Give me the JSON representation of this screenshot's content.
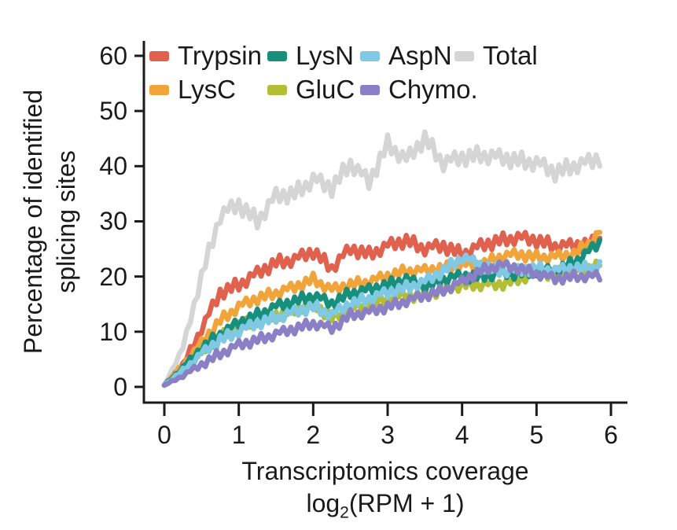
{
  "figure": {
    "ylabel_line1": "Percentage of identified",
    "ylabel_line2": "splicing sites",
    "xlabel_line1": "Transcriptomics coverage",
    "xlabel_log_prefix": "log",
    "xlabel_log_sub": "2",
    "xlabel_log_suffix": "(RPM + 1)"
  },
  "chart_data": {
    "type": "line",
    "title": "",
    "xlabel": "Transcriptomics coverage log2(RPM + 1)",
    "ylabel": "Percentage of identified splicing sites",
    "xlim": [
      -0.28,
      6.22
    ],
    "ylim": [
      -3,
      62.5
    ],
    "x_ticks": [
      0,
      1,
      2,
      3,
      4,
      5,
      6
    ],
    "y_ticks": [
      0,
      10,
      20,
      30,
      40,
      50,
      60
    ],
    "grid": false,
    "legend_position": "top",
    "axis_color": "#1a1a1a",
    "x_anchors": [
      0,
      0.25,
      0.5,
      0.75,
      1,
      1.25,
      1.5,
      1.75,
      2,
      2.25,
      2.5,
      2.75,
      3,
      3.25,
      3.5,
      3.75,
      4,
      4.25,
      4.5,
      4.75,
      5,
      5.25,
      5.5,
      5.75,
      5.85
    ],
    "series": [
      {
        "name": "Trypsin",
        "color": "#E0614E",
        "jitter_amp": 1.2,
        "jitter_phase": 0,
        "values": [
          0.3,
          4,
          10.5,
          17,
          18.5,
          20.5,
          22.5,
          23,
          24.5,
          21.5,
          25,
          24,
          25.5,
          26.5,
          25,
          25.5,
          24,
          25.5,
          26.5,
          27,
          26.5,
          25.5,
          25.5,
          26,
          26.5
        ]
      },
      {
        "name": "LysC",
        "color": "#F0A43A",
        "jitter_amp": 1.0,
        "jitter_phase": 3,
        "values": [
          0.3,
          4,
          8,
          12,
          14.5,
          16,
          17,
          18,
          19.5,
          17.5,
          18.5,
          19,
          20,
          21,
          21,
          21.5,
          22,
          22,
          23.5,
          24,
          23.5,
          23.5,
          24,
          26.5,
          28
        ]
      },
      {
        "name": "LysN",
        "color": "#178F7D",
        "jitter_amp": 1.0,
        "jitter_phase": 6,
        "values": [
          0.3,
          3.5,
          7,
          9.5,
          11.5,
          13,
          14.5,
          15.5,
          16.5,
          15,
          17,
          17.5,
          18.5,
          19.5,
          18,
          19.5,
          20,
          20,
          20.5,
          20.5,
          21,
          21,
          22.5,
          25,
          26
        ]
      },
      {
        "name": "GluC",
        "color": "#B4BE35",
        "jitter_amp": 1.0,
        "jitter_phase": 9,
        "values": [
          0.3,
          3,
          6.5,
          9,
          11,
          12,
          13,
          14,
          15,
          12.5,
          14,
          15,
          16,
          16.5,
          16.5,
          17.5,
          18.5,
          18.5,
          18.5,
          19.5,
          20.5,
          20.5,
          21,
          21.5,
          22.5
        ]
      },
      {
        "name": "AspN",
        "color": "#7FC9E4",
        "jitter_amp": 1.0,
        "jitter_phase": 2,
        "values": [
          0.3,
          3,
          6,
          8.5,
          10,
          11.5,
          12.5,
          13.5,
          14.5,
          13,
          15,
          16,
          17,
          18,
          19,
          21,
          23.5,
          22,
          21,
          21,
          21.5,
          21,
          21.5,
          21.5,
          22
        ]
      },
      {
        "name": "Chymo.",
        "color": "#8B80C5",
        "jitter_amp": 0.9,
        "jitter_phase": 5,
        "values": [
          0.3,
          2,
          4,
          6,
          7.5,
          8.5,
          9.5,
          10.5,
          11.5,
          10.5,
          13,
          13.5,
          14.5,
          15.5,
          16.5,
          17.5,
          19,
          21,
          22,
          21.5,
          20.5,
          19.5,
          20,
          20,
          20
        ]
      },
      {
        "name": "Total",
        "color": "#D5D5D5",
        "jitter_amp": 1.5,
        "jitter_phase": 7,
        "values": [
          0.3,
          7,
          20,
          31,
          33,
          30,
          34.5,
          35,
          37.5,
          36,
          40.5,
          37,
          44,
          41,
          45,
          40.5,
          41.5,
          42,
          41.5,
          41,
          40.5,
          38.8,
          40,
          40.8,
          41.5
        ]
      }
    ],
    "draw_order": [
      "Total",
      "Trypsin",
      "LysC",
      "GluC",
      "LysN",
      "AspN",
      "Chymo."
    ],
    "jitter_pattern": [
      0,
      1,
      -0.7,
      0.6,
      -1,
      0.8,
      -0.5,
      1.1,
      -0.8,
      0.4,
      -0.9,
      0.7
    ]
  }
}
